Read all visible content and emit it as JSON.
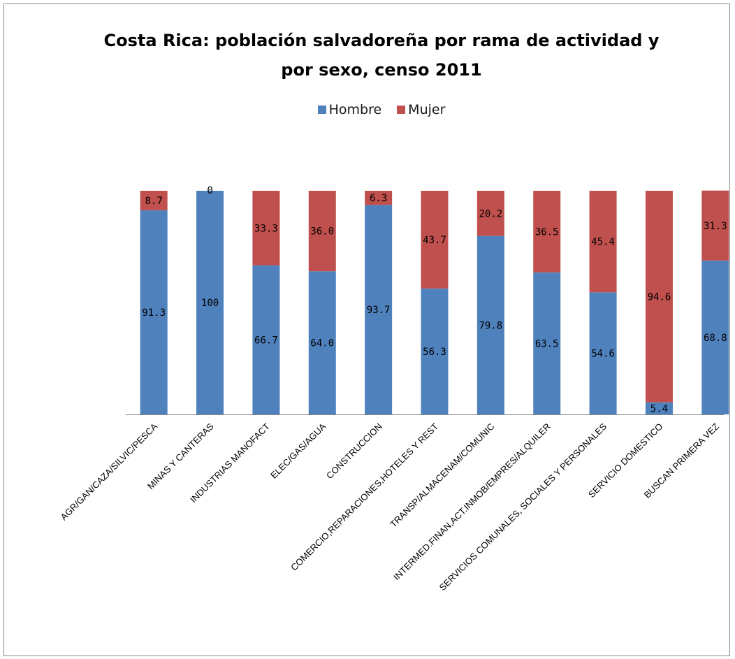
{
  "chart_data": {
    "type": "bar",
    "stacked": true,
    "percent_stacked": true,
    "title_lines": [
      "Costa Rica: población salvadoreña por rama de actividad y",
      "por sexo, censo 2011"
    ],
    "legend_position": "top",
    "categories": [
      "AGR/GAN/CAZA/SILVIC/PESCA",
      "MINAS Y CANTERAS",
      "INDUSTRIAS MANOFACT",
      "ELEC/GAS/AGUA",
      "CONSTRUCCION",
      "COMERCIO,REPARACIONES,HOTELES Y REST",
      "TRANSP/ALMACENAM/COMUNIC",
      "INTERMED.FINAN,ACT.INMOB/EMPRES/ALQUILER",
      "SERVICIOS COMUNALES, SOCIALES Y PERSONALES",
      "SERVICIO DOMESTICO",
      "BUSCAN PRIMERA VEZ"
    ],
    "series": [
      {
        "name": "Hombre",
        "color": "#4F81BD",
        "values": [
          91.3,
          100,
          66.7,
          64.0,
          93.7,
          56.3,
          79.8,
          63.5,
          54.6,
          5.4,
          68.8
        ],
        "labels": [
          "91.3",
          "100",
          "66.7",
          "64.0",
          "93.7",
          "56.3",
          "79.8",
          "63.5",
          "54.6",
          "5.4",
          "68.8"
        ]
      },
      {
        "name": "Mujer",
        "color": "#C0504D",
        "values": [
          8.7,
          0,
          33.3,
          36.0,
          6.3,
          43.7,
          20.2,
          36.5,
          45.4,
          94.6,
          31.3
        ],
        "labels": [
          "8.7",
          "0",
          "33.3",
          "36.0",
          "6.3",
          "43.7",
          "20.2",
          "36.5",
          "45.4",
          "94.6",
          "31.3"
        ]
      }
    ],
    "ylim": [
      0,
      100
    ],
    "grid": false,
    "axis_color": "#868686"
  }
}
